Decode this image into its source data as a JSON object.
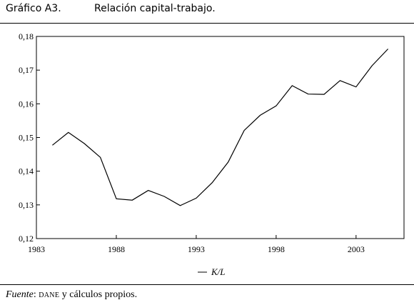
{
  "header": {
    "label": "Gráfico A3.",
    "title": "Relación capital-trabajo."
  },
  "source": {
    "prefix": "Fuente",
    "separator": ":",
    "org": "DANE",
    "rest": " y cálculos propios."
  },
  "chart_data": {
    "type": "line",
    "title": "Relación capital-trabajo.",
    "xlabel": "",
    "ylabel": "",
    "xlim": [
      1983,
      2006
    ],
    "ylim": [
      0.12,
      0.18
    ],
    "x_ticks": [
      "1983",
      "1988",
      "1993",
      "1998",
      "2003"
    ],
    "y_ticks": [
      "0,18",
      "0,17",
      "0,16",
      "0,15",
      "0,14",
      "0,13",
      "0,12"
    ],
    "grid": false,
    "legend_position": "bottom-center",
    "series": [
      {
        "name": "K/L",
        "color": "#000000",
        "x": [
          1984,
          1985,
          1986,
          1987,
          1988,
          1989,
          1990,
          1991,
          1992,
          1993,
          1994,
          1995,
          1996,
          1997,
          1998,
          1999,
          2000,
          2001,
          2002,
          2003,
          2004,
          2005
        ],
        "values": [
          0.1477,
          0.1515,
          0.1482,
          0.1441,
          0.1318,
          0.1314,
          0.1343,
          0.1325,
          0.1298,
          0.132,
          0.1366,
          0.1427,
          0.1521,
          0.1566,
          0.1594,
          0.1654,
          0.1629,
          0.1628,
          0.1669,
          0.165,
          0.1713,
          0.1763
        ]
      }
    ]
  }
}
